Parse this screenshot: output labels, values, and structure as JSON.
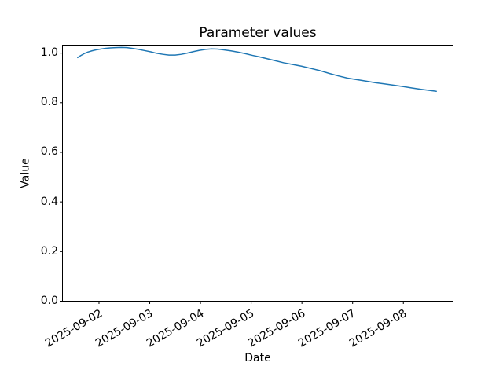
{
  "figure": {
    "background_color": "#ffffff",
    "text_color": "#000000",
    "spine_color": "#000000"
  },
  "chart_data": {
    "type": "line",
    "title": "Parameter values",
    "xlabel": "Date",
    "ylabel": "Value",
    "legend": null,
    "grid": false,
    "line_color": "#1f77b4",
    "line_width": 1.5,
    "x_unit": "days since 2025-09-02 00:00",
    "xlim_days": [
      -0.72,
      6.98
    ],
    "ylim": [
      0,
      1.032
    ],
    "x_tick_positions_days": [
      0,
      1,
      2,
      3,
      4,
      5,
      6
    ],
    "x_tick_labels": [
      "2025-09-02",
      "2025-09-03",
      "2025-09-04",
      "2025-09-05",
      "2025-09-06",
      "2025-09-07",
      "2025-09-08"
    ],
    "y_tick_values": [
      0.0,
      0.2,
      0.4,
      0.6,
      0.8,
      1.0
    ],
    "y_tick_labels": [
      "0.0",
      "0.2",
      "0.4",
      "0.6",
      "0.8",
      "1.0"
    ],
    "series": [
      {
        "name": "parameter-value",
        "points": [
          [
            -0.42,
            0.982
          ],
          [
            -0.36,
            0.99
          ],
          [
            -0.29,
            0.998
          ],
          [
            -0.22,
            1.004
          ],
          [
            -0.14,
            1.009
          ],
          [
            -0.06,
            1.013
          ],
          [
            0.03,
            1.016
          ],
          [
            0.12,
            1.019
          ],
          [
            0.22,
            1.021
          ],
          [
            0.33,
            1.022
          ],
          [
            0.44,
            1.023
          ],
          [
            0.55,
            1.022
          ],
          [
            0.66,
            1.019
          ],
          [
            0.78,
            1.015
          ],
          [
            0.9,
            1.01
          ],
          [
            1.02,
            1.005
          ],
          [
            1.14,
            0.999
          ],
          [
            1.26,
            0.995
          ],
          [
            1.38,
            0.992
          ],
          [
            1.5,
            0.992
          ],
          [
            1.62,
            0.995
          ],
          [
            1.74,
            1.0
          ],
          [
            1.86,
            1.006
          ],
          [
            1.98,
            1.011
          ],
          [
            2.1,
            1.015
          ],
          [
            2.22,
            1.017
          ],
          [
            2.34,
            1.016
          ],
          [
            2.46,
            1.013
          ],
          [
            2.6,
            1.009
          ],
          [
            2.74,
            1.004
          ],
          [
            2.88,
            0.998
          ],
          [
            3.02,
            0.991
          ],
          [
            3.16,
            0.985
          ],
          [
            3.32,
            0.977
          ],
          [
            3.48,
            0.969
          ],
          [
            3.64,
            0.961
          ],
          [
            3.82,
            0.954
          ],
          [
            4.0,
            0.947
          ],
          [
            4.18,
            0.938
          ],
          [
            4.36,
            0.929
          ],
          [
            4.54,
            0.918
          ],
          [
            4.72,
            0.908
          ],
          [
            4.9,
            0.899
          ],
          [
            5.08,
            0.893
          ],
          [
            5.26,
            0.887
          ],
          [
            5.44,
            0.881
          ],
          [
            5.62,
            0.876
          ],
          [
            5.8,
            0.871
          ],
          [
            6.0,
            0.865
          ],
          [
            6.18,
            0.859
          ],
          [
            6.35,
            0.854
          ],
          [
            6.5,
            0.85
          ],
          [
            6.65,
            0.846
          ]
        ]
      }
    ]
  }
}
